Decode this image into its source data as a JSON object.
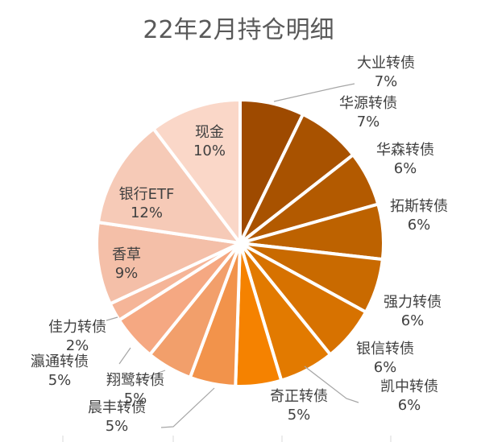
{
  "chart_data": {
    "type": "pie",
    "title": "22年2月持仓明细",
    "slices": [
      {
        "label": "大业转债",
        "value": 7,
        "pct_label": "7%",
        "color": "#9e4a00"
      },
      {
        "label": "华源转债",
        "value": 7,
        "pct_label": "7%",
        "color": "#a85200"
      },
      {
        "label": "华森转债",
        "value": 6,
        "pct_label": "6%",
        "color": "#b35a00"
      },
      {
        "label": "拓斯转债",
        "value": 6,
        "pct_label": "6%",
        "color": "#bd6200"
      },
      {
        "label": "强力转债",
        "value": 6,
        "pct_label": "6%",
        "color": "#c96a00"
      },
      {
        "label": "银信转债",
        "value": 6,
        "pct_label": "6%",
        "color": "#d77200"
      },
      {
        "label": "凯中转债",
        "value": 6,
        "pct_label": "6%",
        "color": "#e27a00"
      },
      {
        "label": "奇正转债",
        "value": 5,
        "pct_label": "5%",
        "color": "#f58200"
      },
      {
        "label": "晨丰转债",
        "value": 5,
        "pct_label": "5%",
        "color": "#f2934b"
      },
      {
        "label": "翔鹭转债",
        "value": 5,
        "pct_label": "5%",
        "color": "#f29f6b"
      },
      {
        "label": "瀛通转债",
        "value": 5,
        "pct_label": "5%",
        "color": "#f5a882"
      },
      {
        "label": "佳力转债",
        "value": 2,
        "pct_label": "2%",
        "color": "#f5b598"
      },
      {
        "label": "香草",
        "value": 9,
        "pct_label": "9%",
        "color": "#f4bfa8"
      },
      {
        "label": "银行ETF",
        "value": 12,
        "pct_label": "12%",
        "color": "#f6cab7"
      },
      {
        "label": "现金",
        "value": 10,
        "pct_label": "10%",
        "color": "#fad7c8"
      }
    ],
    "legend": "none"
  }
}
